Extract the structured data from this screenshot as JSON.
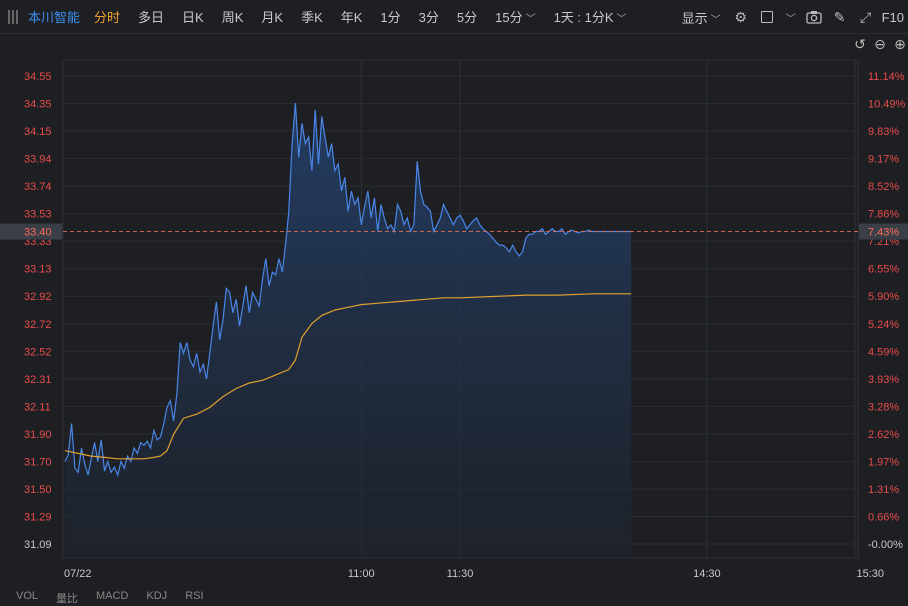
{
  "toolbar": {
    "stock_name": "本川智能",
    "periods": [
      "分时",
      "多日",
      "日K",
      "周K",
      "月K",
      "季K",
      "年K",
      "1分",
      "3分",
      "5分",
      "15分"
    ],
    "active_period": "分时",
    "range_select": "1天 : 1分K",
    "display_label": "显示",
    "f10_label": "F10"
  },
  "bottom_tabs": [
    "VOL",
    "量比",
    "MACD",
    "KDJ",
    "RSI"
  ],
  "colors": {
    "background": "#1d1f22",
    "price_line": "#4a86e8",
    "avg_line": "#e0a030",
    "axis_text_red": "#e84c4c",
    "current_marker": "#3a3f47"
  },
  "chart_data": {
    "type": "line",
    "title": "",
    "date": "07/22",
    "current_price": "33.40",
    "current_pct": "7.43%",
    "prev_close": 31.09,
    "ylim": [
      31.09,
      34.55
    ],
    "y_ticks": [
      "34.55",
      "34.35",
      "34.15",
      "33.94",
      "33.74",
      "33.53",
      "33.33",
      "33.13",
      "32.92",
      "32.72",
      "32.52",
      "32.31",
      "32.11",
      "31.90",
      "31.70",
      "31.50",
      "31.29",
      "31.09"
    ],
    "pct_ticks": [
      "11.14%",
      "10.49%",
      "9.83%",
      "9.17%",
      "8.52%",
      "7.86%",
      "7.21%",
      "6.55%",
      "5.90%",
      "5.24%",
      "4.59%",
      "3.93%",
      "3.28%",
      "2.62%",
      "1.97%",
      "1.31%",
      "0.66%",
      "-0.00%"
    ],
    "x_labels": [
      {
        "minute": 0,
        "label": "07/22"
      },
      {
        "minute": 90,
        "label": "11:00"
      },
      {
        "minute": 120,
        "label": "11:30"
      },
      {
        "minute": 195,
        "label": "14:30"
      },
      {
        "minute": 240,
        "label": "15:30"
      }
    ],
    "series": [
      {
        "name": "price",
        "x": [
          0,
          1,
          2,
          3,
          4,
          5,
          6,
          7,
          8,
          9,
          10,
          11,
          12,
          13,
          14,
          15,
          16,
          17,
          18,
          19,
          20,
          21,
          22,
          23,
          24,
          25,
          26,
          27,
          28,
          29,
          30,
          31,
          32,
          33,
          34,
          35,
          36,
          37,
          38,
          39,
          40,
          41,
          42,
          43,
          44,
          45,
          46,
          47,
          48,
          49,
          50,
          51,
          52,
          53,
          54,
          55,
          56,
          57,
          58,
          59,
          60,
          61,
          62,
          63,
          64,
          65,
          66,
          67,
          68,
          69,
          70,
          71,
          72,
          73,
          74,
          75,
          76,
          77,
          78,
          79,
          80,
          81,
          82,
          83,
          84,
          85,
          86,
          87,
          88,
          89,
          90,
          91,
          92,
          93,
          94,
          95,
          96,
          97,
          98,
          99,
          100,
          101,
          102,
          103,
          104,
          105,
          106,
          107,
          108,
          109,
          110,
          111,
          112,
          113,
          114,
          115,
          116,
          117,
          118,
          119,
          120,
          121,
          122,
          123,
          124,
          125,
          126,
          127,
          128,
          129,
          130,
          131,
          132,
          133,
          134,
          135,
          136,
          137,
          138,
          139,
          140,
          141,
          142,
          143,
          144,
          145,
          146,
          147,
          148,
          149,
          150,
          151,
          152,
          153,
          154,
          155,
          156,
          157,
          158,
          159,
          160,
          161,
          162,
          163,
          164,
          165,
          166,
          167,
          168,
          169,
          170,
          171,
          172
        ],
        "values": [
          31.7,
          31.75,
          31.98,
          31.65,
          31.62,
          31.8,
          31.68,
          31.6,
          31.72,
          31.84,
          31.7,
          31.86,
          31.63,
          31.7,
          31.62,
          31.66,
          31.6,
          31.7,
          31.65,
          31.74,
          31.7,
          31.8,
          31.76,
          31.84,
          31.82,
          31.85,
          31.8,
          31.93,
          31.86,
          31.88,
          31.98,
          32.1,
          32.15,
          32.0,
          32.2,
          32.58,
          32.5,
          32.58,
          32.45,
          32.4,
          32.5,
          32.36,
          32.42,
          32.31,
          32.5,
          32.7,
          32.88,
          32.6,
          32.75,
          32.98,
          32.95,
          32.8,
          32.9,
          32.7,
          32.85,
          33.0,
          32.8,
          32.95,
          32.9,
          32.85,
          33.05,
          33.2,
          33.0,
          33.1,
          33.08,
          33.2,
          33.1,
          33.3,
          33.55,
          34.05,
          34.35,
          33.95,
          34.2,
          34.05,
          34.1,
          33.85,
          34.3,
          33.9,
          34.25,
          34.1,
          33.95,
          34.05,
          33.85,
          33.9,
          33.7,
          33.8,
          33.55,
          33.7,
          33.6,
          33.65,
          33.45,
          33.58,
          33.7,
          33.5,
          33.65,
          33.4,
          33.6,
          33.5,
          33.42,
          33.45,
          33.4,
          33.6,
          33.55,
          33.45,
          33.5,
          33.4,
          33.45,
          33.92,
          33.7,
          33.6,
          33.58,
          33.55,
          33.4,
          33.45,
          33.5,
          33.6,
          33.55,
          33.5,
          33.45,
          33.5,
          33.52,
          33.48,
          33.42,
          33.45,
          33.48,
          33.5,
          33.45,
          33.42,
          33.4,
          33.38,
          33.35,
          33.32,
          33.3,
          33.3,
          33.28,
          33.25,
          33.3,
          33.25,
          33.22,
          33.25,
          33.35,
          33.38,
          33.38,
          33.4,
          33.4,
          33.42,
          33.38,
          33.4,
          33.42,
          33.4,
          33.4,
          33.42,
          33.38,
          33.4,
          33.41,
          33.4,
          33.39,
          33.4,
          33.4,
          33.41,
          33.4,
          33.4,
          33.4,
          33.4,
          33.4,
          33.4,
          33.4,
          33.4,
          33.4,
          33.4,
          33.4,
          33.4,
          33.4
        ]
      },
      {
        "name": "average",
        "x": [
          0,
          4,
          8,
          12,
          16,
          20,
          24,
          27,
          29,
          31,
          33,
          36,
          40,
          44,
          48,
          52,
          56,
          60,
          64,
          68,
          70,
          72,
          75,
          78,
          82,
          86,
          90,
          95,
          100,
          105,
          110,
          115,
          120,
          130,
          140,
          150,
          160,
          172
        ],
        "values": [
          31.78,
          31.76,
          31.74,
          31.73,
          31.72,
          31.72,
          31.72,
          31.73,
          31.74,
          31.78,
          31.9,
          32.02,
          32.05,
          32.1,
          32.18,
          32.24,
          32.28,
          32.3,
          32.34,
          32.38,
          32.45,
          32.62,
          32.72,
          32.78,
          32.82,
          32.84,
          32.86,
          32.87,
          32.88,
          32.89,
          32.9,
          32.91,
          32.91,
          32.92,
          32.93,
          32.93,
          32.94,
          32.94
        ]
      }
    ]
  }
}
